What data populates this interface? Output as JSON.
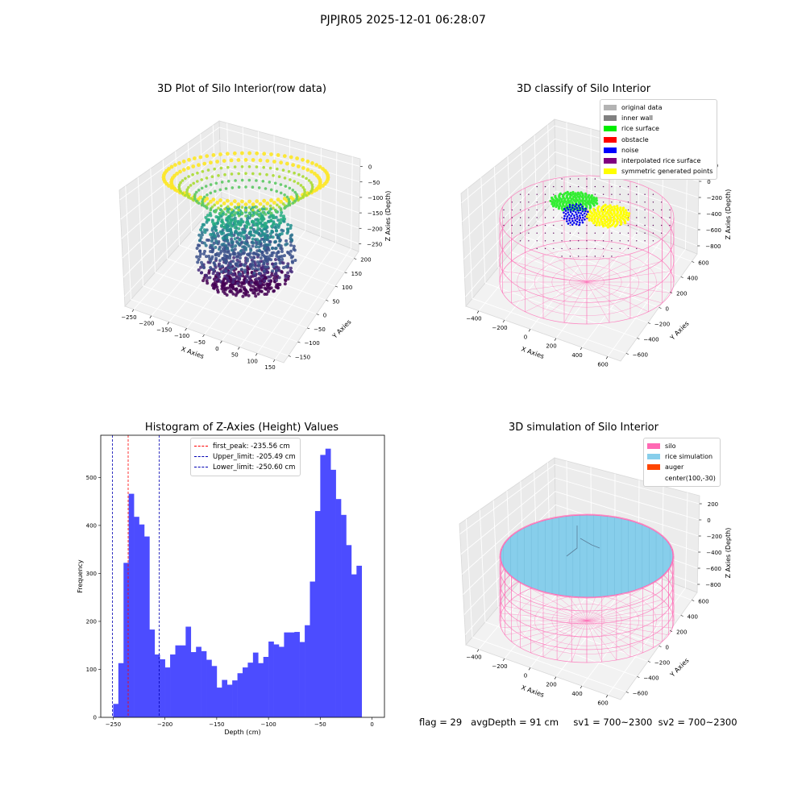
{
  "figure": {
    "suptitle": "PJPJR05 2025-12-01 06:28:07",
    "status": {
      "flag": "flag = 29",
      "avgDepth": "avgDepth = 91 cm",
      "sv1": "sv1 = 700~2300",
      "sv2": "sv2 = 700~2300"
    }
  },
  "chart_data": [
    {
      "type": "scatter",
      "projection": "3d",
      "title": "3D Plot of Silo Interior(row data)",
      "xlabel": "X Axies",
      "ylabel": "Y Axies",
      "zlabel": "Z Axies (Depth)",
      "x_ticks": [
        "−250",
        "−200",
        "−150",
        "−100",
        "−50",
        "0",
        "50",
        "100",
        "150"
      ],
      "y_ticks": [
        "−150",
        "−100",
        "−50",
        "0",
        "50",
        "100",
        "150",
        "200"
      ],
      "z_ticks": [
        "0",
        "−50",
        "−100",
        "−150",
        "−200",
        "−250"
      ],
      "xlim": [
        -250,
        150
      ],
      "ylim": [
        -150,
        200
      ],
      "zlim": [
        -260,
        0
      ],
      "colormap": "viridis (by depth)",
      "grid": true
    },
    {
      "type": "scatter",
      "projection": "3d",
      "title": "3D classify of Silo Interior",
      "xlabel": "X Axies",
      "ylabel": "Y Axies",
      "zlabel": "Z Axies (Depth)",
      "x_ticks": [
        "−400",
        "−200",
        "0",
        "200",
        "400",
        "600"
      ],
      "y_ticks": [
        "−600",
        "−400",
        "−200",
        "0",
        "200",
        "400",
        "600"
      ],
      "z_ticks": [
        "200",
        "0",
        "−200",
        "−400",
        "−600",
        "−800"
      ],
      "legend_position": "top-right",
      "legend": [
        {
          "label": "original data",
          "color": "#b3b3b3"
        },
        {
          "label": "inner wall",
          "color": "#808080"
        },
        {
          "label": "rice surface",
          "color": "#00ee00"
        },
        {
          "label": "obstacle",
          "color": "#ff0000"
        },
        {
          "label": "noise",
          "color": "#0000ff"
        },
        {
          "label": "interpolated rice surface",
          "color": "#800080"
        },
        {
          "label": "symmetric generated points",
          "color": "#ffff00"
        }
      ],
      "grid": true
    },
    {
      "type": "bar",
      "title": "Histogram of Z-Axies (Height) Values",
      "xlabel": "Depth (cm)",
      "ylabel": "Frequency",
      "bin_start": -250,
      "bin_width": 5,
      "values": [
        28,
        113,
        322,
        466,
        418,
        402,
        377,
        183,
        131,
        121,
        104,
        131,
        150,
        150,
        189,
        136,
        147,
        138,
        120,
        107,
        62,
        78,
        68,
        77,
        92,
        104,
        114,
        135,
        113,
        126,
        158,
        152,
        147,
        177,
        177,
        178,
        157,
        192,
        283,
        430,
        547,
        560,
        516,
        455,
        422,
        359,
        298,
        316
      ],
      "bar_color": "#4c4cff",
      "x_ticks": [
        -250,
        -200,
        -150,
        -100,
        -50,
        0
      ],
      "x_tick_labels": [
        "−250",
        "−200",
        "−150",
        "−100",
        "−50",
        "0"
      ],
      "y_ticks": [
        0,
        100,
        200,
        300,
        400,
        500
      ],
      "xlim": [
        -262,
        12
      ],
      "ylim": [
        0,
        588
      ],
      "lines": [
        {
          "label": "first_peak: -235.56 cm",
          "x": -235.56,
          "color": "#ff0000"
        },
        {
          "label": "Upper_limit: -205.49 cm",
          "x": -205.49,
          "color": "#0000b3"
        },
        {
          "label": "Lower_limit: -250.60 cm",
          "x": -250.6,
          "color": "#0000b3"
        }
      ],
      "legend_position": "top-center"
    },
    {
      "type": "scatter",
      "projection": "3d",
      "title": "3D simulation of Silo Interior",
      "xlabel": "X Axies",
      "ylabel": "Y Axies",
      "zlabel": "Z Axies (Depth)",
      "x_ticks": [
        "−400",
        "−200",
        "0",
        "200",
        "400",
        "600"
      ],
      "y_ticks": [
        "−600",
        "−400",
        "−200",
        "0",
        "200",
        "400",
        "600"
      ],
      "z_ticks": [
        "200",
        "0",
        "−200",
        "−400",
        "−600",
        "−800"
      ],
      "legend_position": "top-right",
      "legend": [
        {
          "label": "silo",
          "color": "#ff69b4"
        },
        {
          "label": "rice simulation",
          "color": "#87ceeb"
        },
        {
          "label": "auger",
          "color": "#ff4500"
        },
        {
          "label": "center(100,-30)",
          "color": ""
        }
      ],
      "grid": true
    }
  ]
}
